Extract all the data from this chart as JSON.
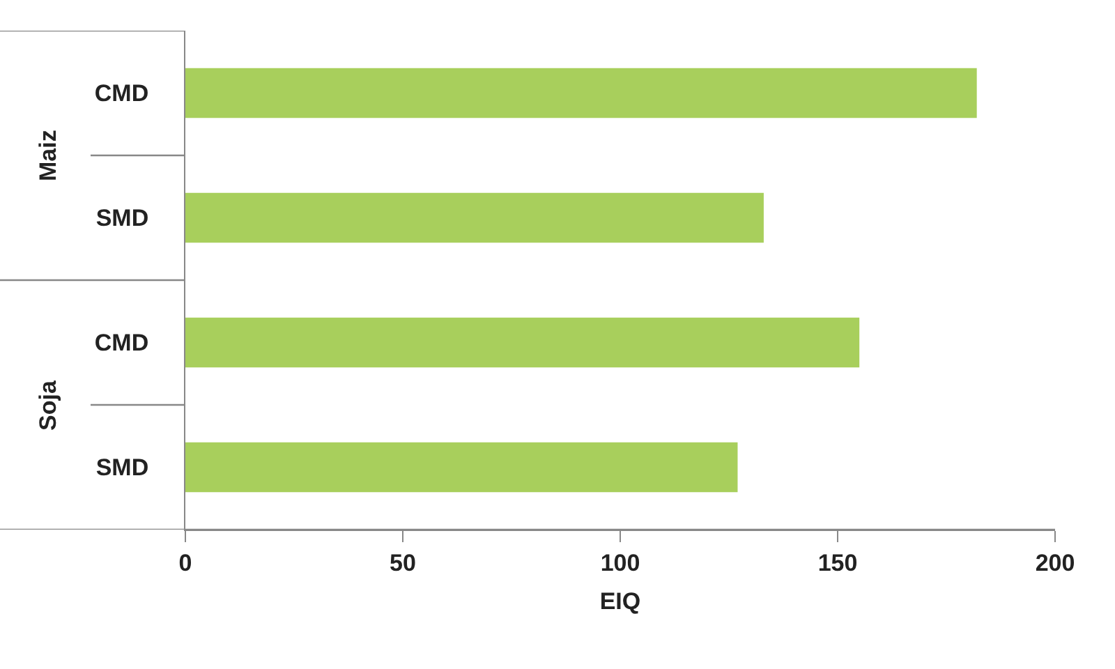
{
  "chart_data": {
    "type": "bar",
    "orientation": "horizontal",
    "xlabel": "EIQ",
    "categories": [
      "CMD",
      "SMD",
      "CMD",
      "SMD"
    ],
    "values": [
      182,
      133,
      155,
      127
    ],
    "color": "#a8cf5c",
    "annotations": [
      "Maiz",
      "Soja"
    ],
    "xlim": [
      0,
      200
    ],
    "xticks": [
      0,
      50,
      100,
      150,
      200
    ]
  }
}
